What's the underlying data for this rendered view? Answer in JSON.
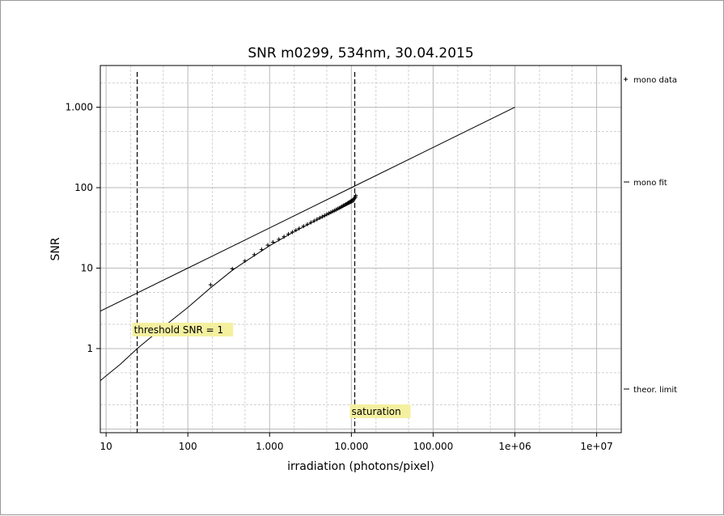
{
  "chart_data": {
    "type": "scatter",
    "title": "SNR m0299, 534nm, 30.04.2015",
    "xlabel": "irradiation (photons/pixel)",
    "ylabel": "SNR",
    "x_scale": "log",
    "y_scale": "log",
    "xlim": [
      8.5,
      20000000
    ],
    "ylim": [
      0.09,
      3300
    ],
    "x_ticks": [
      {
        "value": 10,
        "label": "10"
      },
      {
        "value": 100,
        "label": "100"
      },
      {
        "value": 1000,
        "label": "1.000"
      },
      {
        "value": 10000,
        "label": "10.000"
      },
      {
        "value": 100000,
        "label": "100.000"
      },
      {
        "value": 1000000,
        "label": "1e+06"
      },
      {
        "value": 10000000,
        "label": "1e+07"
      }
    ],
    "y_ticks": [
      {
        "value": 1,
        "label": "1"
      },
      {
        "value": 10,
        "label": "10"
      },
      {
        "value": 100,
        "label": "100"
      },
      {
        "value": 1000,
        "label": "1.000"
      }
    ],
    "grid": true,
    "legend_position": "right",
    "series": [
      {
        "name": "mono data",
        "kind": "points",
        "marker": "+",
        "points": [
          [
            190,
            6.2
          ],
          [
            350,
            9.8
          ],
          [
            500,
            12.3
          ],
          [
            650,
            14.7
          ],
          [
            800,
            17.0
          ],
          [
            950,
            19.3
          ],
          [
            1100,
            21.0
          ],
          [
            1300,
            22.8
          ],
          [
            1500,
            24.6
          ],
          [
            1700,
            26.5
          ],
          [
            1900,
            28.0
          ],
          [
            2100,
            29.6
          ],
          [
            2300,
            31.2
          ],
          [
            2600,
            33.2
          ],
          [
            2900,
            35.1
          ],
          [
            3200,
            37.0
          ],
          [
            3500,
            38.8
          ],
          [
            3800,
            40.5
          ],
          [
            4100,
            42.1
          ],
          [
            4400,
            43.6
          ],
          [
            4700,
            45.1
          ],
          [
            5000,
            46.6
          ],
          [
            5300,
            48.0
          ],
          [
            5600,
            49.4
          ],
          [
            5900,
            50.8
          ],
          [
            6200,
            52.1
          ],
          [
            6500,
            53.4
          ],
          [
            6800,
            54.7
          ],
          [
            7100,
            56.0
          ],
          [
            7400,
            57.3
          ],
          [
            7700,
            58.6
          ],
          [
            8000,
            59.9
          ],
          [
            8300,
            61.2
          ],
          [
            8600,
            62.5
          ],
          [
            8900,
            63.8
          ],
          [
            9200,
            65.1
          ],
          [
            9500,
            66.4
          ],
          [
            9800,
            67.8
          ],
          [
            10100,
            69.2
          ],
          [
            10400,
            70.6
          ],
          [
            10700,
            72.2
          ],
          [
            11000,
            74.0
          ],
          [
            11200,
            77.0
          ],
          [
            11300,
            80.0
          ]
        ]
      },
      {
        "name": "mono fit",
        "kind": "line",
        "points": [
          [
            8.5,
            0.4
          ],
          [
            15,
            0.64
          ],
          [
            24,
            1.0
          ],
          [
            50,
            1.85
          ],
          [
            100,
            3.25
          ],
          [
            190,
            5.7
          ],
          [
            350,
            9.4
          ],
          [
            500,
            12.0
          ],
          [
            1000,
            19.0
          ],
          [
            2000,
            28.5
          ],
          [
            5000,
            45.6
          ],
          [
            10000,
            64.5
          ],
          [
            11000,
            68.0
          ]
        ]
      },
      {
        "name": "theor. limit",
        "kind": "line",
        "points": [
          [
            8.5,
            2.92
          ],
          [
            100,
            10.0
          ],
          [
            1000,
            31.6
          ],
          [
            10000,
            100
          ],
          [
            100000,
            316
          ],
          [
            1000000,
            1000
          ]
        ]
      }
    ],
    "vlines": [
      {
        "x": 24,
        "label": "threshold SNR = 1"
      },
      {
        "x": 11000,
        "label": "saturation"
      }
    ]
  }
}
